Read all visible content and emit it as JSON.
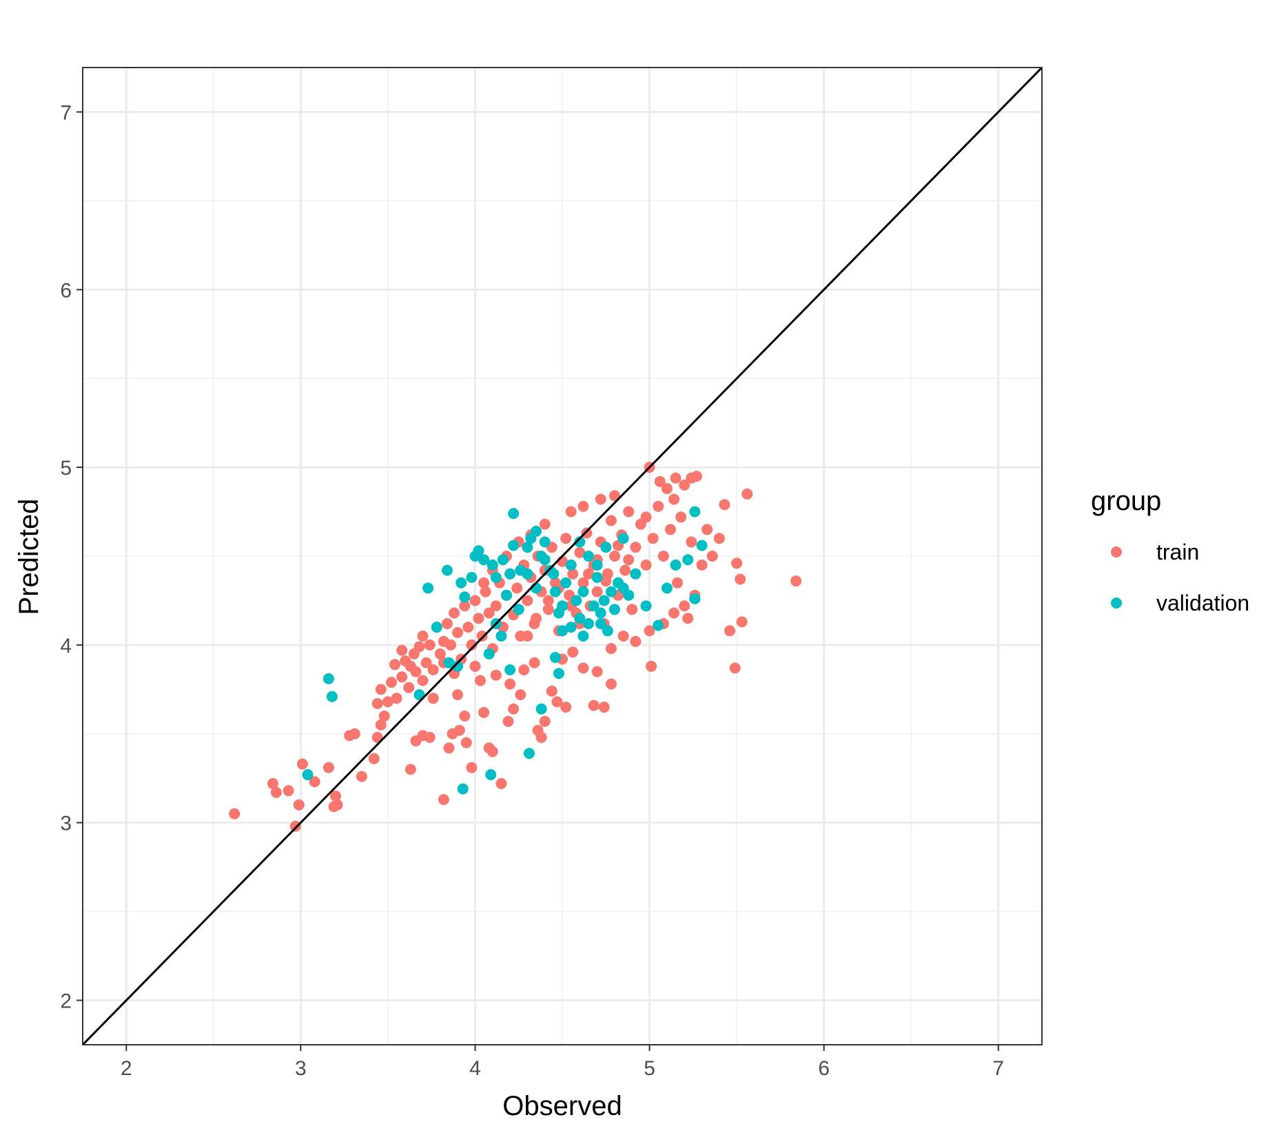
{
  "chart_data": {
    "type": "scatter",
    "title": "",
    "xlabel": "Observed",
    "ylabel": "Predicted",
    "xlim": [
      1.75,
      7.25
    ],
    "ylim": [
      1.75,
      7.25
    ],
    "xticks": [
      "2",
      "3",
      "4",
      "5",
      "6",
      "7"
    ],
    "yticks": [
      "2",
      "3",
      "4",
      "5",
      "6",
      "7"
    ],
    "grid": true,
    "reference_line": {
      "type": "identity",
      "slope": 1,
      "intercept": 0,
      "color": "#000000"
    },
    "legend": {
      "title": "group",
      "placement": "right",
      "entries": [
        {
          "label": "train",
          "color": "#F8766D"
        },
        {
          "label": "validation",
          "color": "#00BFC4"
        }
      ]
    },
    "series": [
      {
        "name": "train",
        "color": "#F8766D",
        "points": [
          [
            2.62,
            3.05
          ],
          [
            2.84,
            3.22
          ],
          [
            2.86,
            3.17
          ],
          [
            2.93,
            3.18
          ],
          [
            2.97,
            2.98
          ],
          [
            2.99,
            3.1
          ],
          [
            3.01,
            3.33
          ],
          [
            3.08,
            3.23
          ],
          [
            3.16,
            3.31
          ],
          [
            3.2,
            3.15
          ],
          [
            3.19,
            3.09
          ],
          [
            3.21,
            3.1
          ],
          [
            3.28,
            3.49
          ],
          [
            3.31,
            3.5
          ],
          [
            3.35,
            3.26
          ],
          [
            3.42,
            3.36
          ],
          [
            3.44,
            3.48
          ],
          [
            3.46,
            3.55
          ],
          [
            3.44,
            3.67
          ],
          [
            3.46,
            3.75
          ],
          [
            3.48,
            3.6
          ],
          [
            3.5,
            3.68
          ],
          [
            3.52,
            3.79
          ],
          [
            3.54,
            3.89
          ],
          [
            3.55,
            3.7
          ],
          [
            3.58,
            3.82
          ],
          [
            3.6,
            3.91
          ],
          [
            3.62,
            3.76
          ],
          [
            3.65,
            3.95
          ],
          [
            3.66,
            3.85
          ],
          [
            3.68,
            3.99
          ],
          [
            3.7,
            4.05
          ],
          [
            3.72,
            3.9
          ],
          [
            3.74,
            4.0
          ],
          [
            3.76,
            3.86
          ],
          [
            3.78,
            4.1
          ],
          [
            3.8,
            3.95
          ],
          [
            3.82,
            4.02
          ],
          [
            3.84,
            4.12
          ],
          [
            3.86,
            4.0
          ],
          [
            3.88,
            4.18
          ],
          [
            3.9,
            4.07
          ],
          [
            3.92,
            3.92
          ],
          [
            3.94,
            4.22
          ],
          [
            3.96,
            4.1
          ],
          [
            3.98,
            4.0
          ],
          [
            4.0,
            4.25
          ],
          [
            4.02,
            4.15
          ],
          [
            4.04,
            4.05
          ],
          [
            4.06,
            4.3
          ],
          [
            4.08,
            4.18
          ],
          [
            4.1,
            3.98
          ],
          [
            4.12,
            4.22
          ],
          [
            4.14,
            4.35
          ],
          [
            4.16,
            4.1
          ],
          [
            4.18,
            4.28
          ],
          [
            4.2,
            4.4
          ],
          [
            4.22,
            4.17
          ],
          [
            4.24,
            4.32
          ],
          [
            4.26,
            4.05
          ],
          [
            4.28,
            4.45
          ],
          [
            4.3,
            4.25
          ],
          [
            4.32,
            4.38
          ],
          [
            4.34,
            4.12
          ],
          [
            4.36,
            4.5
          ],
          [
            4.38,
            4.3
          ],
          [
            4.4,
            4.42
          ],
          [
            4.42,
            4.2
          ],
          [
            4.44,
            4.55
          ],
          [
            4.46,
            4.35
          ],
          [
            4.48,
            4.08
          ],
          [
            4.5,
            4.47
          ],
          [
            4.52,
            4.6
          ],
          [
            4.54,
            4.28
          ],
          [
            4.56,
            4.4
          ],
          [
            4.58,
            4.18
          ],
          [
            4.6,
            4.52
          ],
          [
            4.62,
            4.35
          ],
          [
            4.64,
            4.63
          ],
          [
            4.66,
            4.22
          ],
          [
            4.68,
            4.45
          ],
          [
            4.7,
            4.3
          ],
          [
            4.72,
            4.58
          ],
          [
            4.74,
            4.12
          ],
          [
            4.76,
            4.4
          ],
          [
            4.78,
            4.7
          ],
          [
            4.8,
            4.5
          ],
          [
            4.82,
            4.28
          ],
          [
            4.84,
            4.62
          ],
          [
            4.86,
            4.42
          ],
          [
            4.88,
            4.75
          ],
          [
            4.9,
            4.2
          ],
          [
            4.92,
            4.55
          ],
          [
            4.95,
            4.68
          ],
          [
            4.98,
            4.45
          ],
          [
            5.0,
            5.0
          ],
          [
            5.02,
            4.6
          ],
          [
            5.05,
            4.78
          ],
          [
            5.08,
            4.5
          ],
          [
            5.1,
            4.88
          ],
          [
            5.12,
            4.65
          ],
          [
            5.14,
            4.82
          ],
          [
            5.16,
            4.35
          ],
          [
            5.18,
            4.72
          ],
          [
            5.2,
            4.9
          ],
          [
            5.22,
            4.15
          ],
          [
            5.24,
            4.58
          ],
          [
            5.27,
            4.95
          ],
          [
            5.3,
            4.45
          ],
          [
            5.33,
            4.65
          ],
          [
            5.36,
            4.5
          ],
          [
            5.4,
            4.6
          ],
          [
            5.43,
            4.79
          ],
          [
            5.46,
            4.08
          ],
          [
            5.5,
            4.46
          ],
          [
            5.52,
            4.37
          ],
          [
            5.53,
            4.13
          ],
          [
            5.56,
            4.85
          ],
          [
            5.49,
            3.87
          ],
          [
            5.84,
            4.36
          ],
          [
            5.01,
            3.88
          ],
          [
            4.78,
            3.78
          ],
          [
            4.74,
            3.65
          ],
          [
            4.68,
            3.66
          ],
          [
            4.52,
            3.65
          ],
          [
            4.47,
            3.68
          ],
          [
            4.4,
            3.57
          ],
          [
            4.38,
            3.48
          ],
          [
            4.36,
            3.52
          ],
          [
            4.26,
            3.72
          ],
          [
            4.22,
            3.64
          ],
          [
            4.19,
            3.57
          ],
          [
            4.15,
            3.22
          ],
          [
            4.1,
            3.4
          ],
          [
            4.08,
            3.42
          ],
          [
            4.05,
            3.62
          ],
          [
            3.98,
            3.31
          ],
          [
            3.95,
            3.45
          ],
          [
            3.91,
            3.52
          ],
          [
            3.87,
            3.5
          ],
          [
            3.85,
            3.42
          ],
          [
            3.82,
            3.13
          ],
          [
            3.74,
            3.48
          ],
          [
            3.7,
            3.49
          ],
          [
            3.63,
            3.3
          ],
          [
            3.66,
            3.46
          ],
          [
            3.9,
            3.72
          ],
          [
            3.94,
            3.6
          ],
          [
            4.0,
            3.88
          ],
          [
            4.03,
            3.8
          ],
          [
            4.12,
            3.83
          ],
          [
            4.2,
            3.78
          ],
          [
            4.28,
            3.86
          ],
          [
            4.34,
            3.9
          ],
          [
            4.44,
            3.74
          ],
          [
            4.5,
            3.92
          ],
          [
            4.56,
            3.96
          ],
          [
            4.62,
            3.87
          ],
          [
            4.7,
            3.85
          ],
          [
            4.78,
            3.98
          ],
          [
            4.85,
            4.05
          ],
          [
            4.92,
            4.02
          ],
          [
            5.0,
            4.08
          ],
          [
            5.08,
            4.12
          ],
          [
            5.14,
            4.18
          ],
          [
            5.2,
            4.22
          ],
          [
            5.26,
            4.28
          ],
          [
            4.3,
            4.05
          ],
          [
            4.35,
            4.15
          ],
          [
            4.42,
            4.25
          ],
          [
            4.48,
            4.32
          ],
          [
            4.55,
            4.22
          ],
          [
            4.6,
            4.12
          ],
          [
            4.65,
            4.4
          ],
          [
            4.7,
            4.48
          ],
          [
            4.75,
            4.36
          ],
          [
            4.82,
            4.56
          ],
          [
            4.88,
            4.48
          ],
          [
            3.58,
            3.97
          ],
          [
            3.63,
            3.88
          ],
          [
            3.7,
            3.8
          ],
          [
            3.76,
            3.7
          ],
          [
            3.82,
            3.9
          ],
          [
            3.88,
            3.84
          ],
          [
            4.05,
            4.35
          ],
          [
            4.1,
            4.42
          ],
          [
            4.18,
            4.5
          ],
          [
            4.25,
            4.58
          ],
          [
            4.32,
            4.62
          ],
          [
            4.4,
            4.68
          ],
          [
            4.55,
            4.75
          ],
          [
            4.62,
            4.78
          ],
          [
            4.72,
            4.82
          ],
          [
            4.8,
            4.84
          ],
          [
            4.98,
            4.72
          ],
          [
            5.06,
            4.92
          ],
          [
            5.15,
            4.94
          ],
          [
            5.24,
            4.94
          ]
        ]
      },
      {
        "name": "validation",
        "color": "#00BFC4",
        "points": [
          [
            3.04,
            3.27
          ],
          [
            3.16,
            3.81
          ],
          [
            3.18,
            3.71
          ],
          [
            3.73,
            4.32
          ],
          [
            3.78,
            4.1
          ],
          [
            3.84,
            4.42
          ],
          [
            3.92,
            4.35
          ],
          [
            3.94,
            4.27
          ],
          [
            3.98,
            4.38
          ],
          [
            4.0,
            4.5
          ],
          [
            4.02,
            4.53
          ],
          [
            4.05,
            4.48
          ],
          [
            4.1,
            4.45
          ],
          [
            4.12,
            4.38
          ],
          [
            4.16,
            4.48
          ],
          [
            4.2,
            4.4
          ],
          [
            4.22,
            4.56
          ],
          [
            4.22,
            4.74
          ],
          [
            4.26,
            4.42
          ],
          [
            4.3,
            4.55
          ],
          [
            4.32,
            4.6
          ],
          [
            4.35,
            4.64
          ],
          [
            4.38,
            4.5
          ],
          [
            4.4,
            4.58
          ],
          [
            4.43,
            4.42
          ],
          [
            4.46,
            4.3
          ],
          [
            4.48,
            4.18
          ],
          [
            4.5,
            4.22
          ],
          [
            4.52,
            4.35
          ],
          [
            4.55,
            4.1
          ],
          [
            4.58,
            4.25
          ],
          [
            4.6,
            4.15
          ],
          [
            4.62,
            4.3
          ],
          [
            4.65,
            4.12
          ],
          [
            4.68,
            4.22
          ],
          [
            4.7,
            4.38
          ],
          [
            4.72,
            4.18
          ],
          [
            4.74,
            4.25
          ],
          [
            4.76,
            4.08
          ],
          [
            4.78,
            4.3
          ],
          [
            4.8,
            4.2
          ],
          [
            4.82,
            4.35
          ],
          [
            4.85,
            4.32
          ],
          [
            4.88,
            4.28
          ],
          [
            4.92,
            4.4
          ],
          [
            4.98,
            4.22
          ],
          [
            5.05,
            4.11
          ],
          [
            5.1,
            4.32
          ],
          [
            5.15,
            4.45
          ],
          [
            5.22,
            4.48
          ],
          [
            5.26,
            4.26
          ],
          [
            5.26,
            4.75
          ],
          [
            5.3,
            4.56
          ],
          [
            3.93,
            3.19
          ],
          [
            4.09,
            3.27
          ],
          [
            4.31,
            3.39
          ],
          [
            4.38,
            3.64
          ],
          [
            4.48,
            3.84
          ],
          [
            4.46,
            3.93
          ],
          [
            4.2,
            3.86
          ],
          [
            3.85,
            3.9
          ],
          [
            3.68,
            3.72
          ],
          [
            3.9,
            3.88
          ],
          [
            4.08,
            3.95
          ],
          [
            4.15,
            4.05
          ],
          [
            4.25,
            4.2
          ],
          [
            4.35,
            4.32
          ],
          [
            4.45,
            4.4
          ],
          [
            4.55,
            4.45
          ],
          [
            4.65,
            4.5
          ],
          [
            4.75,
            4.55
          ],
          [
            4.85,
            4.6
          ],
          [
            4.6,
            4.58
          ],
          [
            4.7,
            4.45
          ],
          [
            4.4,
            4.48
          ],
          [
            4.3,
            4.4
          ],
          [
            4.18,
            4.28
          ],
          [
            4.12,
            4.12
          ],
          [
            4.5,
            4.08
          ],
          [
            4.62,
            4.05
          ],
          [
            4.72,
            4.12
          ]
        ]
      }
    ]
  }
}
